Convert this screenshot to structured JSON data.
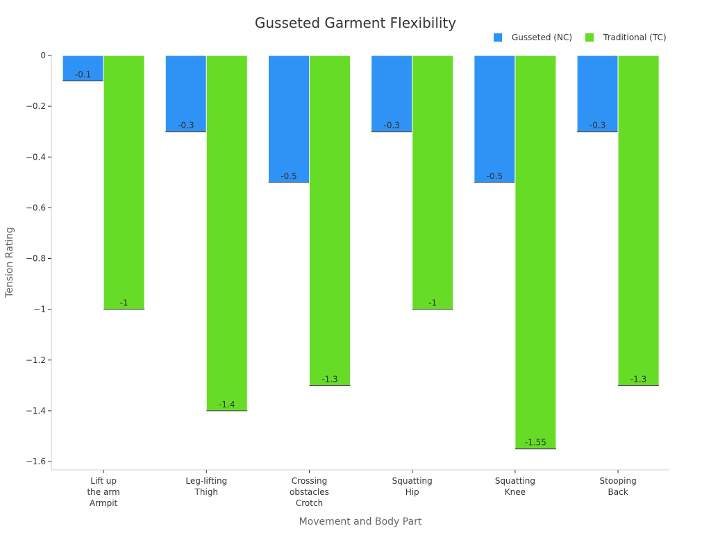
{
  "chart_data": {
    "type": "bar",
    "title": "Gusseted Garment Flexibility",
    "xlabel": "Movement and Body Part",
    "ylabel": "Tension Rating",
    "categories": [
      [
        "Lift up",
        "the arm",
        "Armpit"
      ],
      [
        "Leg-lifting",
        "Thigh"
      ],
      [
        "Crossing",
        "obstacles",
        "Crotch"
      ],
      [
        "Squatting",
        "Hip"
      ],
      [
        "Squatting",
        "Knee"
      ],
      [
        "Stooping",
        "Back"
      ]
    ],
    "series": [
      {
        "name": "Gusseted (NC)",
        "color": "#2f92f5",
        "values": [
          -0.1,
          -0.3,
          -0.5,
          -0.3,
          -0.5,
          -0.3
        ],
        "labels": [
          "-0.1",
          "-0.3",
          "-0.5",
          "-0.3",
          "-0.5",
          "-0.3"
        ]
      },
      {
        "name": "Traditional (TC)",
        "color": "#66dc26",
        "values": [
          -1,
          -1.4,
          -1.3,
          -1,
          -1.55,
          -1.3
        ],
        "labels": [
          "-1",
          "-1.4",
          "-1.3",
          "-1",
          "-1.55",
          "-1.3"
        ]
      }
    ],
    "ylim": [
      -1.63,
      0.02
    ],
    "yticks": [
      0,
      -0.2,
      -0.4,
      -0.6,
      -0.8,
      -1,
      -1.2,
      -1.4,
      -1.6
    ],
    "ytick_labels": [
      "0",
      "−0.2",
      "−0.4",
      "−0.6",
      "−0.8",
      "−1",
      "−1.2",
      "−1.4",
      "−1.6"
    ],
    "grid": false,
    "legend_position": "top-right"
  }
}
